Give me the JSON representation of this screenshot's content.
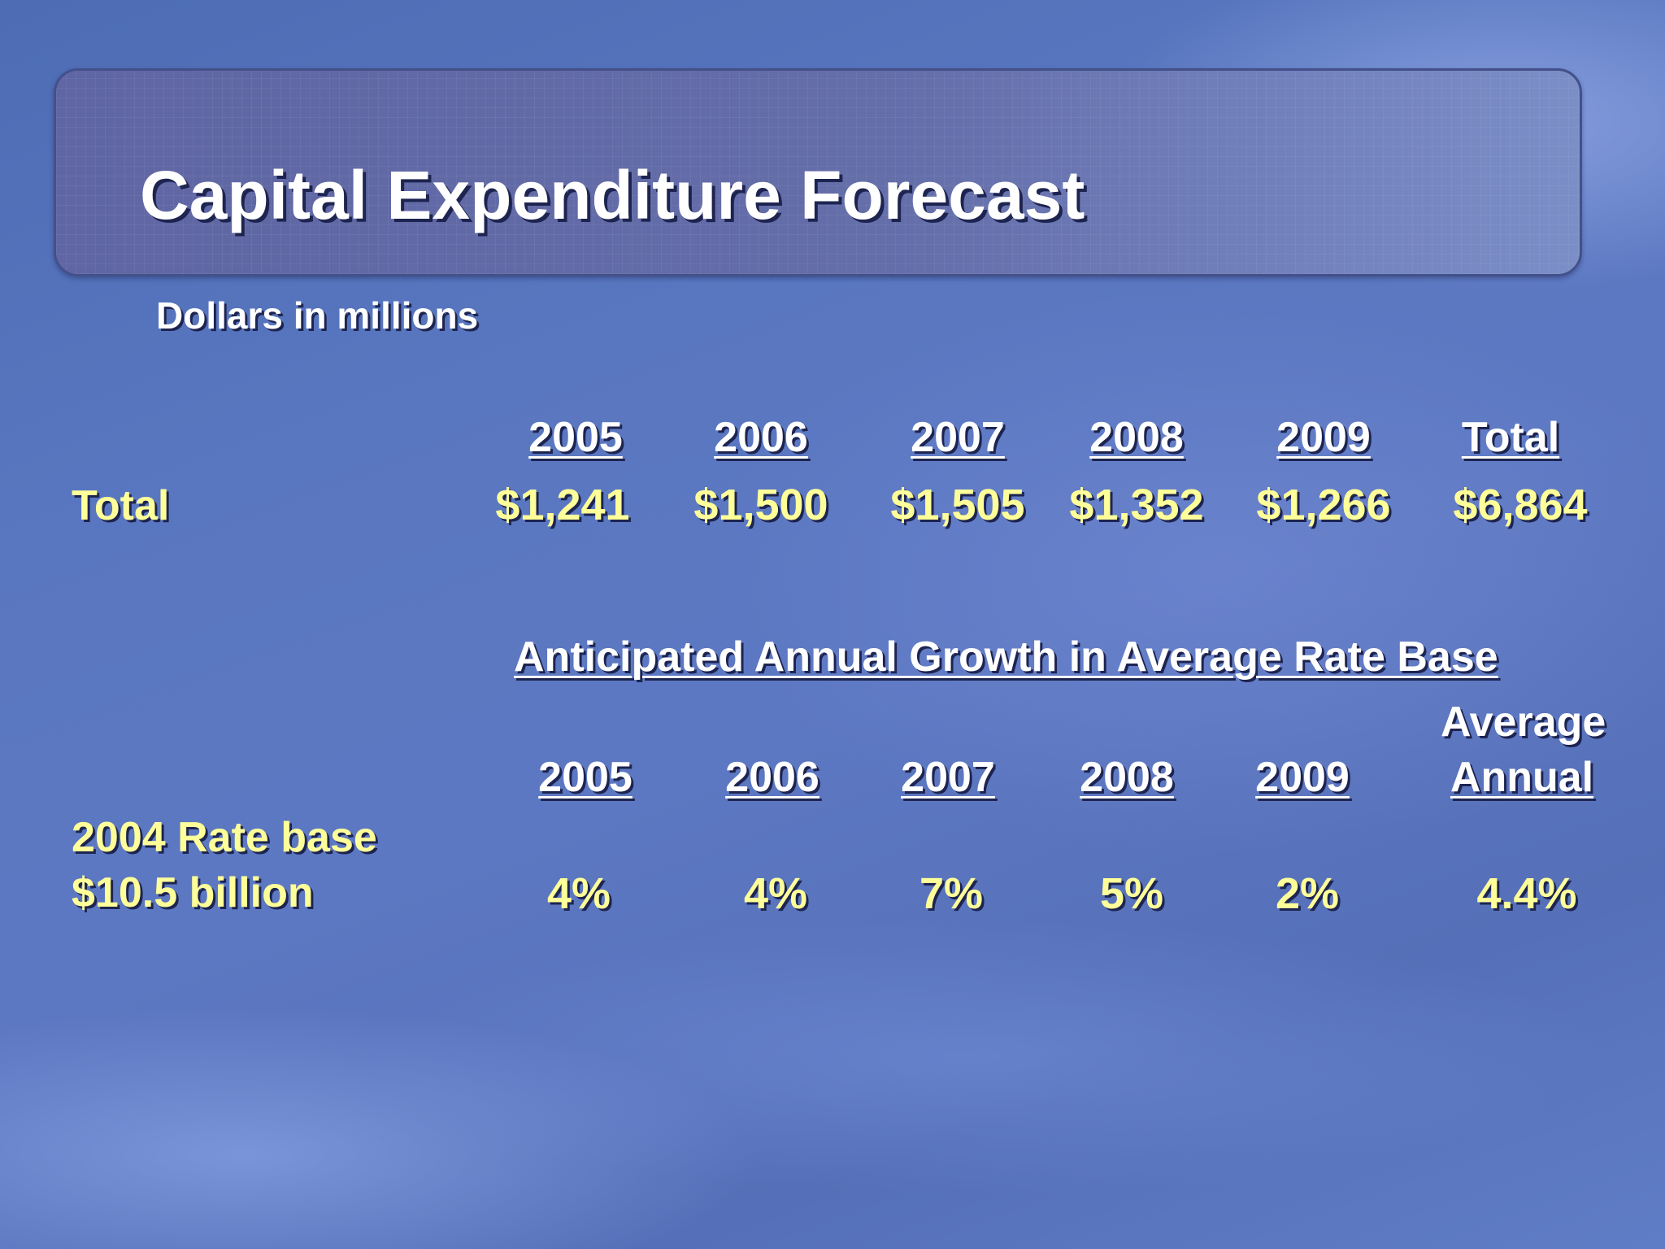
{
  "slide": {
    "title": "Capital Expenditure Forecast",
    "subtitle": "Dollars in millions"
  },
  "capex_table": {
    "headers": [
      "2005",
      "2006",
      "2007",
      "2008",
      "2009",
      "Total"
    ],
    "row_label": "Total",
    "values": [
      "$1,241",
      "$1,500",
      "$1,505",
      "$1,352",
      "$1,266",
      "$6,864"
    ]
  },
  "rate_base_table": {
    "section_title": "Anticipated Annual Growth in Average Rate Base",
    "headers": [
      "2005",
      "2006",
      "2007",
      "2008",
      "2009"
    ],
    "avg_header_line1": "Average",
    "avg_header_line2": "Annual",
    "row_label_line1": "2004 Rate base",
    "row_label_line2": "$10.5 billion",
    "values": [
      "4%",
      "4%",
      "7%",
      "5%",
      "2%",
      "4.4%"
    ]
  },
  "colors": {
    "title_text": "#ffffff",
    "data_text": "#ffff99",
    "shadow": "#1d2450"
  }
}
